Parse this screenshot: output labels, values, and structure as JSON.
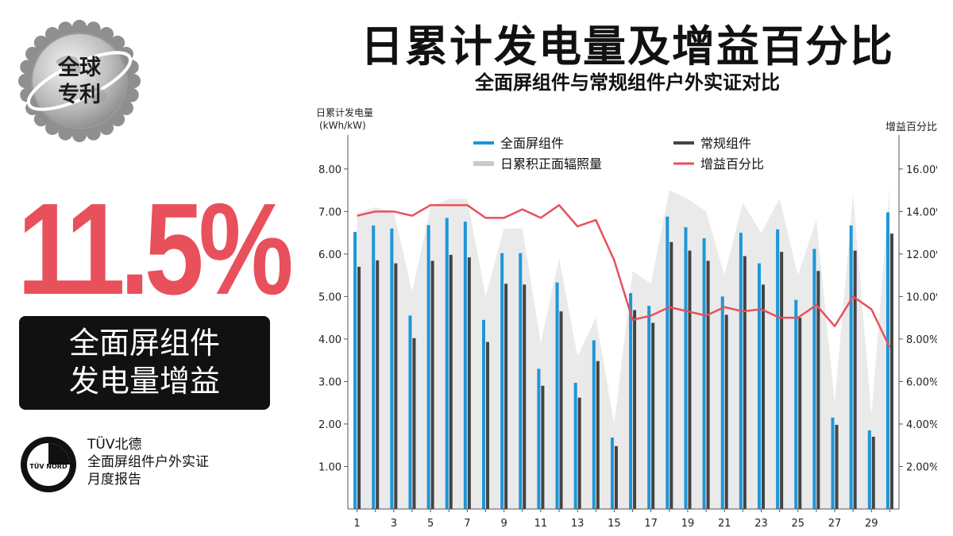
{
  "header": {
    "title": "日累计发电量及增益百分比",
    "subtitle": "全面屏组件与常规组件户外实证对比"
  },
  "seal": {
    "line1": "全球",
    "line2": "专利"
  },
  "highlight": {
    "percent": "11.5%",
    "line1": "全面屏组件",
    "line2": "发电量增益"
  },
  "report": {
    "logo_text": "TÜV NORD",
    "line1": "TÜV北德",
    "line2": "全面屏组件户外实证",
    "line3": "月度报告"
  },
  "colors": {
    "full_screen": "#1e96d8",
    "conventional": "#444444",
    "irradiance": "#d9d9d9",
    "gain": "#e8505b",
    "accent": "#e8505b"
  },
  "chart_data": {
    "type": "bar",
    "ylabel_line1": "日累计发电量",
    "ylabel_line2": "(kWh/kW)",
    "y2label": "增益百分比",
    "ylim": [
      0,
      8.8
    ],
    "y2lim": [
      0,
      17.6
    ],
    "y_ticks": [
      "1.00",
      "2.00",
      "3.00",
      "4.00",
      "5.00",
      "6.00",
      "7.00",
      "8.00"
    ],
    "y2_ticks": [
      "2.00%",
      "4.00%",
      "6.00%",
      "8.00%",
      "10.00%",
      "12.00%",
      "14.00%",
      "16.00%"
    ],
    "x": [
      1,
      2,
      3,
      4,
      5,
      6,
      7,
      8,
      9,
      10,
      11,
      12,
      13,
      14,
      15,
      16,
      17,
      18,
      19,
      20,
      21,
      22,
      23,
      24,
      25,
      26,
      27,
      28,
      29,
      30
    ],
    "x_tick_labels": [
      "1",
      "3",
      "5",
      "7",
      "9",
      "11",
      "13",
      "15",
      "17",
      "19",
      "21",
      "23",
      "25",
      "27",
      "29"
    ],
    "legend_placement": "top-center",
    "series": [
      {
        "name": "全面屏组件",
        "kind": "bar",
        "values": [
          6.52,
          6.67,
          6.6,
          4.55,
          6.68,
          6.85,
          6.76,
          4.45,
          6.02,
          6.02,
          3.3,
          5.33,
          2.97,
          3.97,
          1.68,
          5.08,
          4.78,
          6.88,
          6.63,
          6.37,
          5.0,
          6.5,
          5.78,
          6.58,
          4.92,
          6.12,
          2.15,
          6.67,
          1.85,
          6.98
        ]
      },
      {
        "name": "常规组件",
        "kind": "bar",
        "values": [
          5.7,
          5.85,
          5.78,
          4.02,
          5.84,
          5.98,
          5.92,
          3.93,
          5.3,
          5.28,
          2.9,
          4.65,
          2.62,
          3.48,
          1.48,
          4.68,
          4.38,
          6.28,
          6.08,
          5.84,
          4.57,
          5.95,
          5.28,
          6.05,
          4.5,
          5.6,
          1.98,
          6.08,
          1.7,
          6.48
        ]
      },
      {
        "name": "日累积正面辐照量",
        "kind": "area",
        "values": [
          6.95,
          7.1,
          7.0,
          5.1,
          7.1,
          7.3,
          7.3,
          5.0,
          6.6,
          6.6,
          3.9,
          5.9,
          3.6,
          4.5,
          2.0,
          5.6,
          5.3,
          7.5,
          7.3,
          7.0,
          5.5,
          7.2,
          6.5,
          7.3,
          5.5,
          6.8,
          2.5,
          7.4,
          2.2,
          7.6
        ]
      },
      {
        "name": "增益百分比",
        "kind": "line",
        "values": [
          13.8,
          14.0,
          14.0,
          13.8,
          14.3,
          14.3,
          14.3,
          13.7,
          13.7,
          14.1,
          13.7,
          14.3,
          13.3,
          13.6,
          11.7,
          8.9,
          9.1,
          9.5,
          9.3,
          9.1,
          9.5,
          9.3,
          9.4,
          9.0,
          9.0,
          9.6,
          8.6,
          10.0,
          9.4,
          7.6
        ]
      }
    ]
  }
}
